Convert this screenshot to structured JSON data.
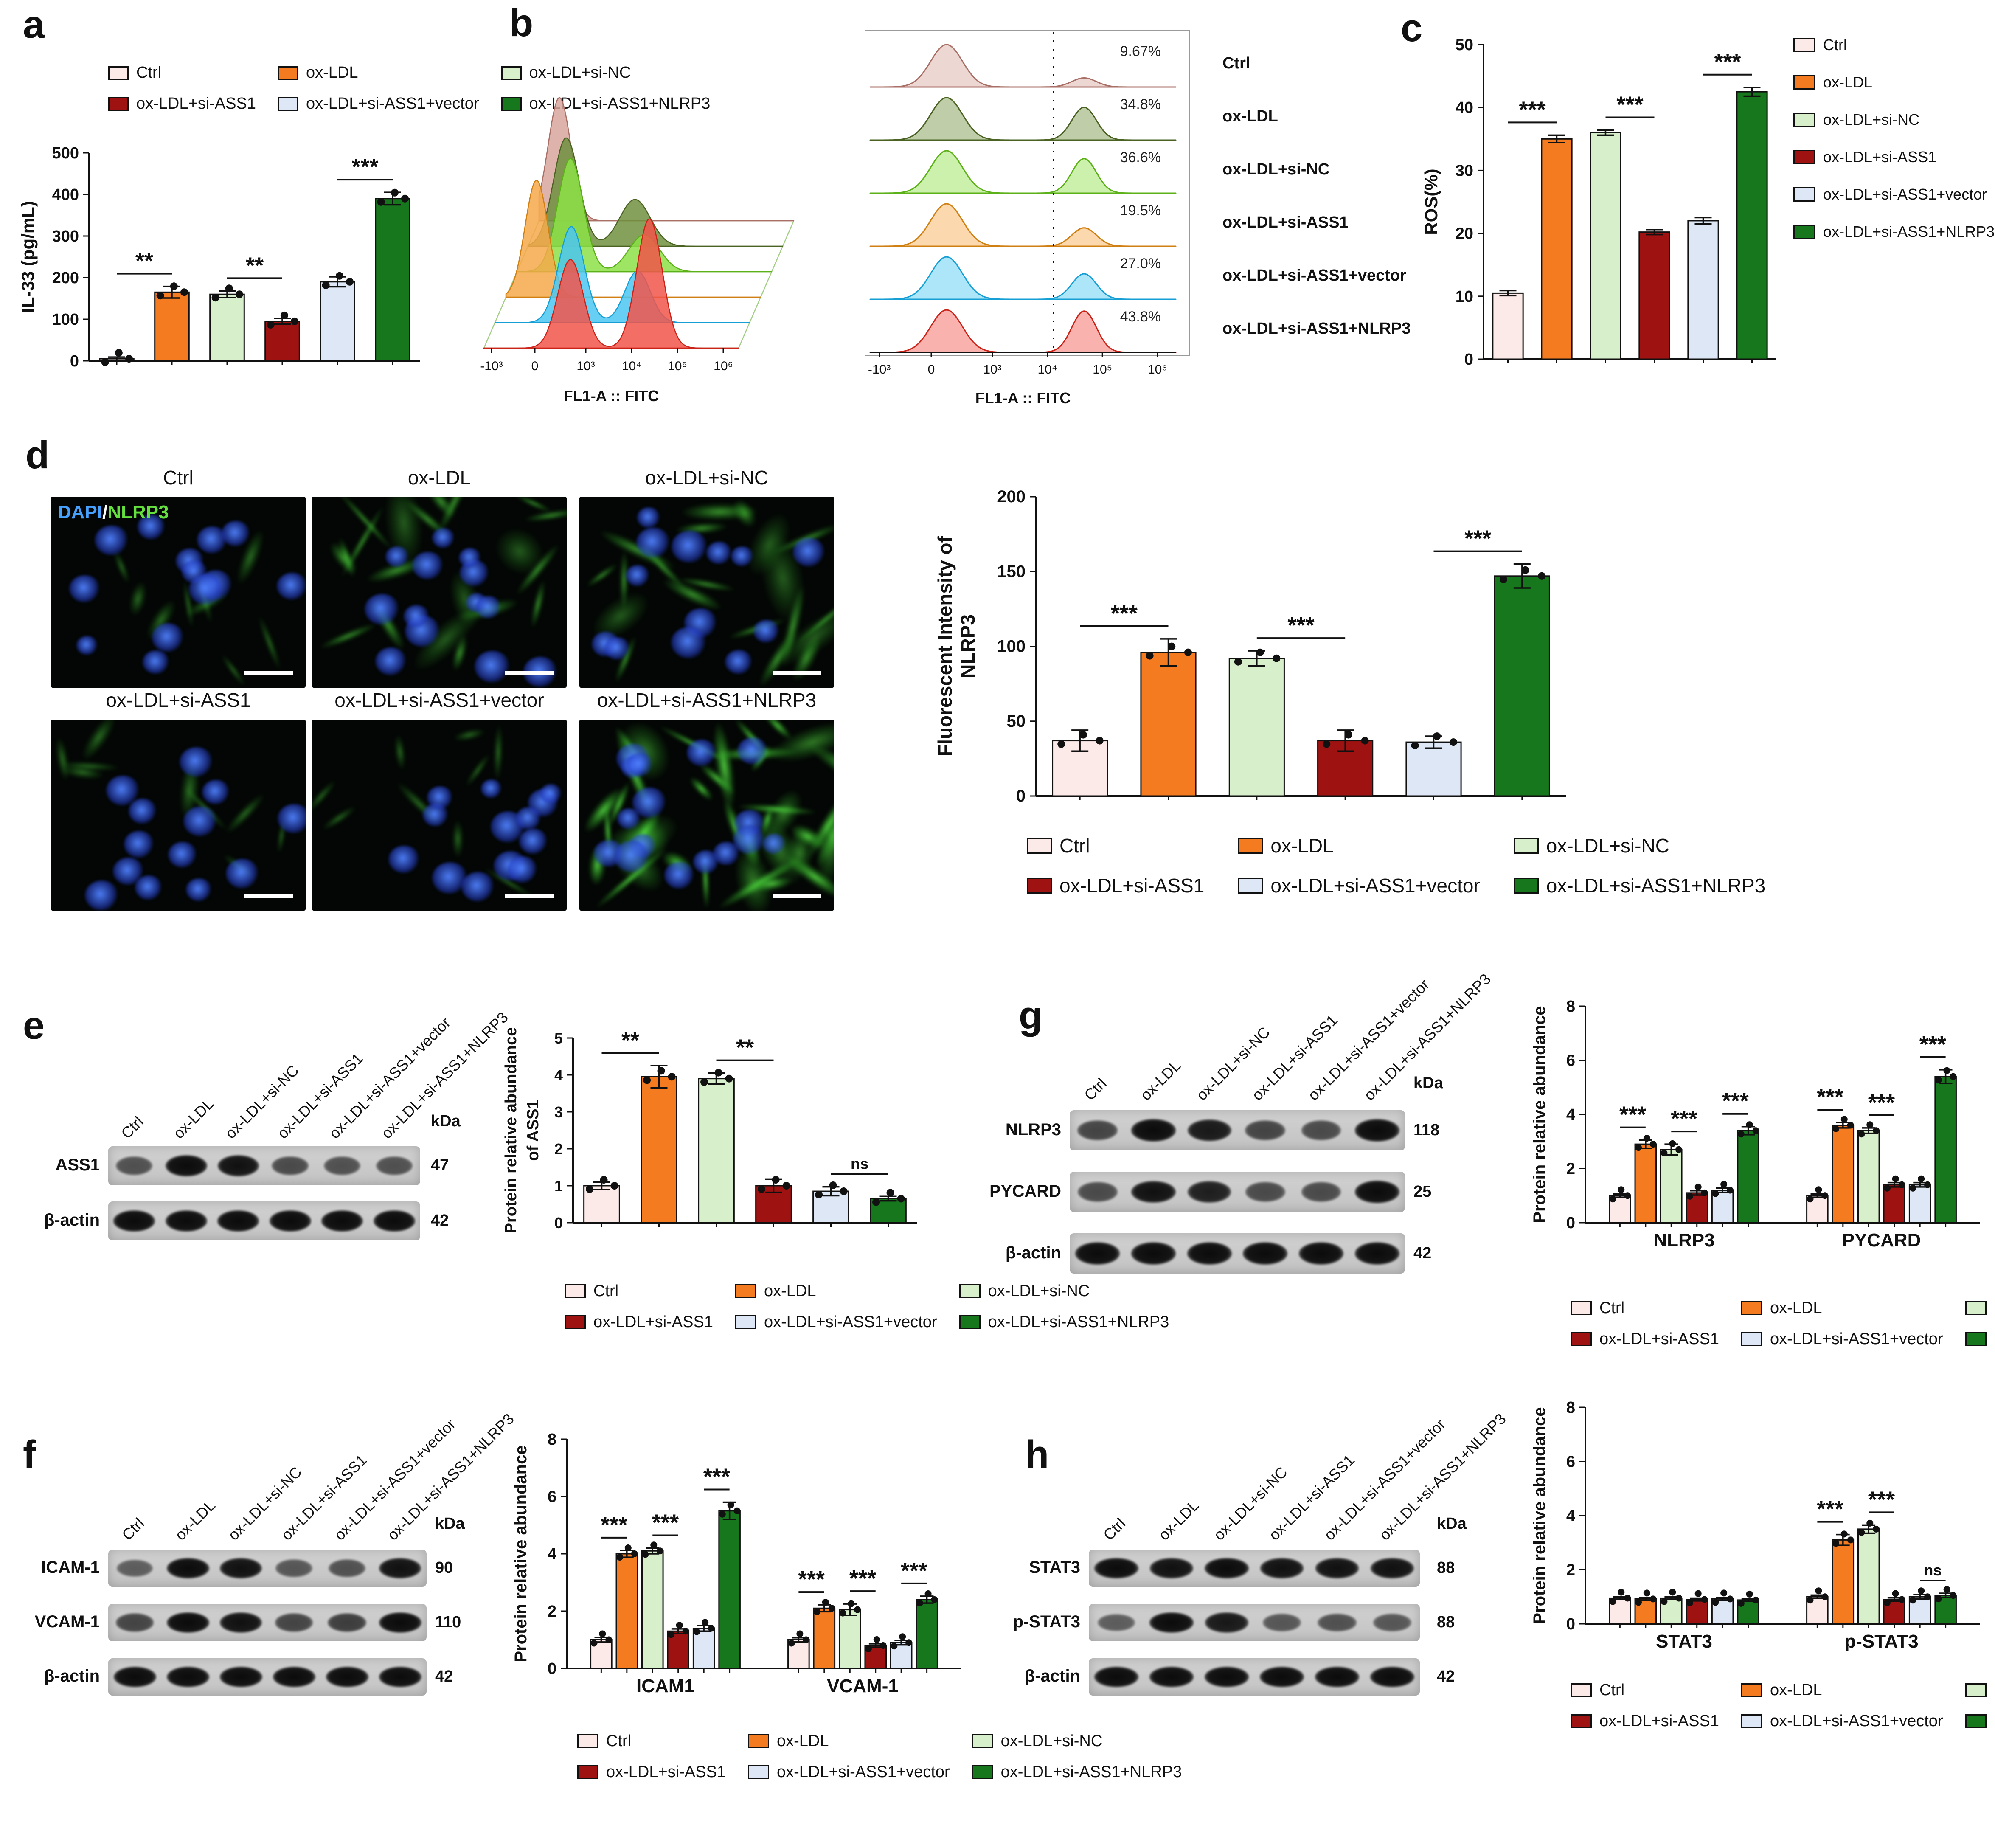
{
  "panels": {
    "a": "a",
    "b": "b",
    "c": "c",
    "d": "d",
    "e": "e",
    "f": "f",
    "g": "g",
    "h": "h"
  },
  "groups": [
    {
      "label": "Ctrl",
      "color": "#fbeae8"
    },
    {
      "label": "ox-LDL",
      "color": "#f47b20"
    },
    {
      "label": "ox-LDL+si-NC",
      "color": "#d8efcc"
    },
    {
      "label": "ox-LDL+si-ASS1",
      "color": "#9e1211"
    },
    {
      "label": "ox-LDL+si-ASS1+vector",
      "color": "#dde7f5"
    },
    {
      "label": "ox-LDL+si-ASS1+NLRP3",
      "color": "#17771c"
    }
  ],
  "flow": {
    "xlabel": "FL1-A :: FITC",
    "x_ticks": [
      "-10³",
      "0",
      "10³",
      "10⁴",
      "10⁵",
      "10⁶"
    ],
    "rows": [
      {
        "label": "Ctrl",
        "percent": "9.67%",
        "fill": "#d8a69e",
        "stroke": "#a96f66"
      },
      {
        "label": "ox-LDL",
        "percent": "34.8%",
        "fill": "#70903f",
        "stroke": "#4a6323"
      },
      {
        "label": "ox-LDL+si-NC",
        "percent": "36.6%",
        "fill": "#8ce046",
        "stroke": "#5cb018"
      },
      {
        "label": "ox-LDL+si-ASS1",
        "percent": "19.5%",
        "fill": "#f6a94a",
        "stroke": "#d07f12"
      },
      {
        "label": "ox-LDL+si-ASS1+vector",
        "percent": "27.0%",
        "fill": "#4cc7f1",
        "stroke": "#169fd4"
      },
      {
        "label": "ox-LDL+si-ASS1+NLRP3",
        "percent": "43.8%",
        "fill": "#f1554a",
        "stroke": "#cc2319"
      }
    ]
  },
  "chart_data": [
    {
      "id": "a",
      "type": "bar",
      "ylabel": "IL-33 (pg/mL)",
      "ylim": [
        0,
        500
      ],
      "yticks": [
        0,
        100,
        200,
        300,
        400,
        500
      ],
      "categories": [
        "Ctrl",
        "ox-LDL",
        "ox-LDL+si-NC",
        "ox-LDL+si-ASS1",
        "ox-LDL+si-ASS1+vector",
        "ox-LDL+si-ASS1+NLRP3"
      ],
      "values": [
        5,
        165,
        160,
        95,
        190,
        390
      ],
      "errors": [
        4,
        14,
        8,
        7,
        12,
        15
      ],
      "sig": [
        {
          "a": 0,
          "b": 1,
          "t": "**"
        },
        {
          "a": 2,
          "b": 3,
          "t": "**"
        },
        {
          "a": 4,
          "b": 5,
          "t": "***"
        }
      ]
    },
    {
      "id": "c",
      "type": "bar",
      "ylabel": "ROS(%)",
      "ylim": [
        0,
        50
      ],
      "yticks": [
        0,
        10,
        20,
        30,
        40,
        50
      ],
      "categories": [
        "Ctrl",
        "ox-LDL",
        "ox-LDL+si-NC",
        "ox-LDL+si-ASS1",
        "ox-LDL+si-ASS1+vector",
        "ox-LDL+si-ASS1+NLRP3"
      ],
      "values": [
        10.5,
        35,
        36,
        20.2,
        22,
        42.5
      ],
      "errors": [
        0.4,
        0.6,
        0.4,
        0.4,
        0.5,
        0.7
      ],
      "sig": [
        {
          "a": 0,
          "b": 1,
          "t": "***"
        },
        {
          "a": 2,
          "b": 3,
          "t": "***"
        },
        {
          "a": 4,
          "b": 5,
          "t": "***"
        }
      ]
    },
    {
      "id": "d",
      "type": "bar",
      "ylabel": [
        "Fluorescent Intensity of",
        "NLRP3"
      ],
      "ylim": [
        0,
        200
      ],
      "yticks": [
        0,
        50,
        100,
        150,
        200
      ],
      "categories": [
        "Ctrl",
        "ox-LDL",
        "ox-LDL+si-NC",
        "ox-LDL+si-ASS1",
        "ox-LDL+si-ASS1+vector",
        "ox-LDL+si-ASS1+NLRP3"
      ],
      "values": [
        37,
        96,
        92,
        37,
        36,
        147
      ],
      "errors": [
        7,
        9,
        5,
        7,
        4,
        8
      ],
      "sig": [
        {
          "a": 0,
          "b": 1,
          "t": "***"
        },
        {
          "a": 2,
          "b": 3,
          "t": "***"
        },
        {
          "a": 4,
          "b": 5,
          "t": "***"
        }
      ]
    },
    {
      "id": "e",
      "type": "bar",
      "ylabel": [
        "Protein relative abundance",
        "of ASS1"
      ],
      "ylim": [
        0,
        5
      ],
      "yticks": [
        0,
        1,
        2,
        3,
        4,
        5
      ],
      "categories": [
        "Ctrl",
        "ox-LDL",
        "ox-LDL+si-NC",
        "ox-LDL+si-ASS1",
        "ox-LDL+si-ASS1+vector",
        "ox-LDL+si-ASS1+NLRP3"
      ],
      "values": [
        1,
        3.95,
        3.9,
        1,
        0.85,
        0.65
      ],
      "errors": [
        0.1,
        0.3,
        0.15,
        0.18,
        0.12,
        0.06
      ],
      "sig": [
        {
          "a": 0,
          "b": 1,
          "t": "**"
        },
        {
          "a": 2,
          "b": 3,
          "t": "**"
        },
        {
          "a": 4,
          "b": 5,
          "t": "ns"
        }
      ]
    },
    {
      "id": "f",
      "type": "grouped-bar",
      "ylabel": "Protein relative abundance",
      "ylim": [
        0,
        8
      ],
      "yticks": [
        0,
        2,
        4,
        6,
        8
      ],
      "categories": [
        "ICAM1",
        "VCAM-1"
      ],
      "series": [
        {
          "name": "ICAM1",
          "values": [
            1,
            4.0,
            4.1,
            1.3,
            1.4,
            5.5
          ],
          "errors": [
            0.08,
            0.12,
            0.1,
            0.08,
            0.1,
            0.3
          ]
        },
        {
          "name": "VCAM-1",
          "values": [
            1,
            2.1,
            2.05,
            0.8,
            0.9,
            2.4
          ],
          "errors": [
            0.07,
            0.12,
            0.2,
            0.06,
            0.08,
            0.12
          ]
        }
      ],
      "sig": [
        {
          "cat": 0,
          "a": 0,
          "b": 1,
          "t": "***"
        },
        {
          "cat": 0,
          "a": 2,
          "b": 3,
          "t": "***"
        },
        {
          "cat": 0,
          "a": 4,
          "b": 5,
          "t": "***"
        },
        {
          "cat": 1,
          "a": 0,
          "b": 1,
          "t": "***"
        },
        {
          "cat": 1,
          "a": 2,
          "b": 3,
          "t": "***"
        },
        {
          "cat": 1,
          "a": 4,
          "b": 5,
          "t": "***"
        }
      ]
    },
    {
      "id": "g",
      "type": "grouped-bar",
      "ylabel": "Protein relative abundance",
      "ylim": [
        0,
        8
      ],
      "yticks": [
        0,
        2,
        4,
        6,
        8
      ],
      "categories": [
        "NLRP3",
        "PYCARD"
      ],
      "series": [
        {
          "name": "NLRP3",
          "values": [
            1,
            2.9,
            2.7,
            1.1,
            1.2,
            3.4
          ],
          "errors": [
            0.06,
            0.15,
            0.2,
            0.08,
            0.08,
            0.15
          ]
        },
        {
          "name": "PYCARD",
          "values": [
            1,
            3.6,
            3.4,
            1.4,
            1.4,
            5.4
          ],
          "errors": [
            0.06,
            0.1,
            0.1,
            0.08,
            0.08,
            0.25
          ]
        }
      ],
      "sig": [
        {
          "cat": 0,
          "a": 0,
          "b": 1,
          "t": "***"
        },
        {
          "cat": 0,
          "a": 2,
          "b": 3,
          "t": "***"
        },
        {
          "cat": 0,
          "a": 4,
          "b": 5,
          "t": "***"
        },
        {
          "cat": 1,
          "a": 0,
          "b": 1,
          "t": "***"
        },
        {
          "cat": 1,
          "a": 2,
          "b": 3,
          "t": "***"
        },
        {
          "cat": 1,
          "a": 4,
          "b": 5,
          "t": "***"
        }
      ]
    },
    {
      "id": "h",
      "type": "grouped-bar",
      "ylabel": "Protein relative abundance",
      "ylim": [
        0,
        8
      ],
      "yticks": [
        0,
        2,
        4,
        6,
        8
      ],
      "categories": [
        "STAT3",
        "p-STAT3"
      ],
      "series": [
        {
          "name": "STAT3",
          "values": [
            0.95,
            0.92,
            0.95,
            0.9,
            0.92,
            0.88
          ],
          "errors": [
            0.05,
            0.05,
            0.05,
            0.05,
            0.05,
            0.05
          ]
        },
        {
          "name": "p-STAT3",
          "values": [
            1,
            3.1,
            3.5,
            0.9,
            1.0,
            1.05
          ],
          "errors": [
            0.06,
            0.2,
            0.15,
            0.06,
            0.08,
            0.08
          ]
        }
      ],
      "sig": [
        {
          "cat": 1,
          "a": 0,
          "b": 1,
          "t": "***"
        },
        {
          "cat": 1,
          "a": 2,
          "b": 3,
          "t": "***"
        },
        {
          "cat": 1,
          "a": 4,
          "b": 5,
          "t": "ns"
        }
      ]
    }
  ],
  "microscopy": {
    "stain": {
      "dapi": "DAPI",
      "sep": "/",
      "marker": "NLRP3"
    },
    "images": [
      {
        "label": "Ctrl",
        "green_level": "low"
      },
      {
        "label": "ox-LDL",
        "green_level": "medium"
      },
      {
        "label": "ox-LDL+si-NC",
        "green_level": "medium"
      },
      {
        "label": "ox-LDL+si-ASS1",
        "green_level": "low"
      },
      {
        "label": "ox-LDL+si-ASS1+vector",
        "green_level": "low"
      },
      {
        "label": "ox-LDL+si-ASS1+NLRP3",
        "green_level": "high"
      }
    ]
  },
  "blots": {
    "kda_header": "kDa",
    "lanes": [
      "Ctrl",
      "ox-LDL",
      "ox-LDL+si-NC",
      "ox-LDL+si-ASS1",
      "ox-LDL+si-ASS1+vector",
      "ox-LDL+si-ASS1+NLRP3"
    ],
    "e": {
      "rows": [
        {
          "name": "ASS1",
          "kda": "47",
          "intensity": [
            0.45,
            1,
            0.95,
            0.5,
            0.45,
            0.45
          ]
        },
        {
          "name": "β-actin",
          "kda": "42",
          "intensity": [
            1,
            1,
            1,
            1,
            1,
            1
          ]
        }
      ]
    },
    "g": {
      "rows": [
        {
          "name": "NLRP3",
          "kda": "118",
          "intensity": [
            0.55,
            1,
            0.9,
            0.55,
            0.5,
            1
          ]
        },
        {
          "name": "PYCARD",
          "kda": "25",
          "intensity": [
            0.5,
            0.95,
            0.85,
            0.5,
            0.5,
            1
          ]
        },
        {
          "name": "β-actin",
          "kda": "42",
          "intensity": [
            1,
            1,
            1,
            1,
            1,
            1
          ]
        }
      ]
    },
    "f": {
      "rows": [
        {
          "name": "ICAM-1",
          "kda": "90",
          "intensity": [
            0.35,
            1,
            0.95,
            0.4,
            0.45,
            0.95
          ]
        },
        {
          "name": "VCAM-1",
          "kda": "110",
          "intensity": [
            0.55,
            1,
            0.95,
            0.55,
            0.6,
            1
          ]
        },
        {
          "name": "β-actin",
          "kda": "42",
          "intensity": [
            1,
            1,
            1,
            1,
            1,
            1
          ]
        }
      ]
    },
    "h": {
      "rows": [
        {
          "name": "STAT3",
          "kda": "88",
          "intensity": [
            1,
            0.95,
            1,
            0.95,
            0.95,
            0.95
          ]
        },
        {
          "name": "p-STAT3",
          "kda": "88",
          "intensity": [
            0.35,
            1,
            0.9,
            0.4,
            0.45,
            0.4
          ]
        },
        {
          "name": "β-actin",
          "kda": "42",
          "intensity": [
            1,
            1,
            1,
            1,
            1,
            1
          ]
        }
      ]
    }
  }
}
